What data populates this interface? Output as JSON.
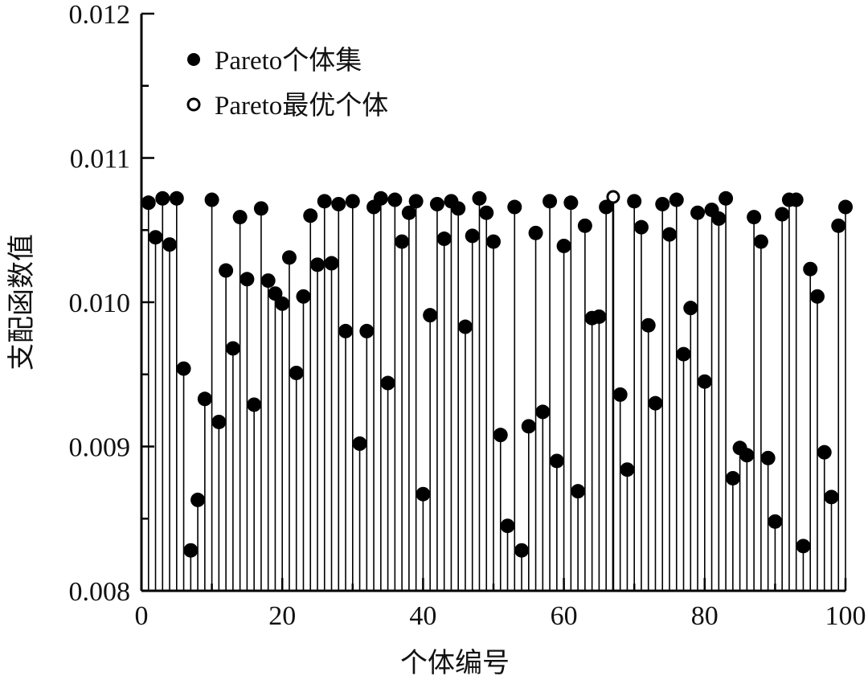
{
  "chart_data": {
    "type": "scatter",
    "xlabel": "个体编号",
    "ylabel": "支配函数值",
    "xlim": [
      0,
      100
    ],
    "ylim": [
      0.008,
      0.012
    ],
    "x_ticks": [
      "0",
      "20",
      "40",
      "60",
      "80",
      "100"
    ],
    "y_ticks": [
      "0.008",
      "0.009",
      "0.010",
      "0.011",
      "0.012"
    ],
    "grid": false,
    "legend_position": "top-left",
    "colors": {
      "marker": "#000000",
      "stem": "#000000",
      "axis": "#000000"
    },
    "series": [
      {
        "name": "Pareto个体集",
        "marker": "filled-circle",
        "x": [
          1,
          2,
          3,
          4,
          5,
          6,
          7,
          8,
          9,
          10,
          11,
          12,
          13,
          14,
          15,
          16,
          17,
          18,
          19,
          20,
          21,
          22,
          23,
          24,
          25,
          26,
          27,
          28,
          29,
          30,
          31,
          32,
          33,
          34,
          35,
          36,
          37,
          38,
          39,
          40,
          41,
          42,
          43,
          44,
          45,
          46,
          47,
          48,
          49,
          50,
          51,
          52,
          53,
          54,
          55,
          56,
          57,
          58,
          59,
          60,
          61,
          62,
          63,
          64,
          65,
          66,
          68,
          69,
          70,
          71,
          72,
          73,
          74,
          75,
          76,
          77,
          78,
          79,
          80,
          81,
          82,
          83,
          84,
          85,
          86,
          87,
          88,
          89,
          90,
          91,
          92,
          93,
          94,
          95,
          96,
          97,
          98,
          99,
          100
        ],
        "y": [
          0.01069,
          0.01045,
          0.01072,
          0.0104,
          0.01072,
          0.00954,
          0.00828,
          0.00863,
          0.00933,
          0.01071,
          0.00917,
          0.01022,
          0.00968,
          0.01059,
          0.01016,
          0.00929,
          0.01065,
          0.01015,
          0.01006,
          0.00999,
          0.01031,
          0.00951,
          0.01004,
          0.0106,
          0.01026,
          0.0107,
          0.01027,
          0.01068,
          0.0098,
          0.0107,
          0.00902,
          0.0098,
          0.01066,
          0.01072,
          0.00944,
          0.01071,
          0.01042,
          0.01062,
          0.0107,
          0.00867,
          0.00991,
          0.01068,
          0.01044,
          0.0107,
          0.01065,
          0.00983,
          0.01046,
          0.01072,
          0.01062,
          0.01042,
          0.00908,
          0.00845,
          0.01066,
          0.00828,
          0.00914,
          0.01048,
          0.00924,
          0.0107,
          0.0089,
          0.01039,
          0.01069,
          0.00869,
          0.01053,
          0.00989,
          0.0099,
          0.01066,
          0.00936,
          0.00884,
          0.0107,
          0.01052,
          0.00984,
          0.0093,
          0.01068,
          0.01047,
          0.01071,
          0.00964,
          0.00996,
          0.01062,
          0.00945,
          0.01064,
          0.01058,
          0.01072,
          0.00878,
          0.00899,
          0.00894,
          0.01059,
          0.01042,
          0.00892,
          0.00848,
          0.01061,
          0.01071,
          0.01071,
          0.00831,
          0.01023,
          0.01004,
          0.00896,
          0.00865,
          0.01053,
          0.01066
        ]
      },
      {
        "name": "Pareto最优个体",
        "marker": "open-circle",
        "x": [
          67
        ],
        "y": [
          0.01073
        ]
      }
    ]
  }
}
